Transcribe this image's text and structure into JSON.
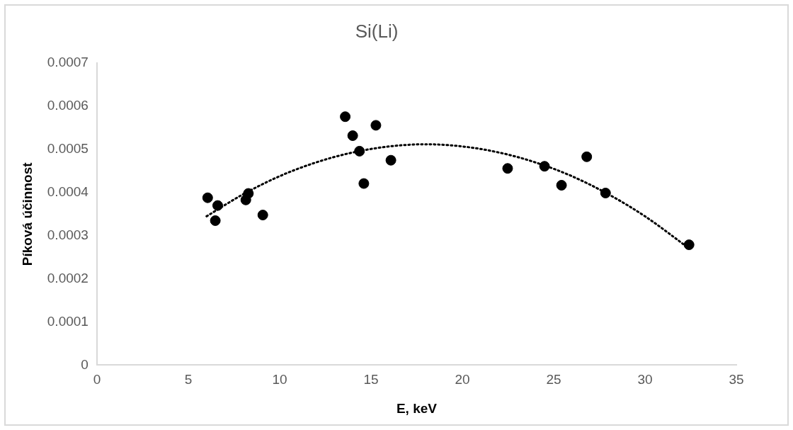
{
  "chart_data": {
    "type": "scatter",
    "title": "Si(Li)",
    "xlabel": "E, keV",
    "ylabel": "Píková účinnost",
    "xlim": [
      0,
      35
    ],
    "xticks": [
      0,
      5,
      10,
      15,
      20,
      25,
      30,
      35
    ],
    "ylim": [
      0,
      0.0007
    ],
    "yticks": [
      0,
      0.0001,
      0.0002,
      0.0003,
      0.0004,
      0.0005,
      0.0006,
      0.0007
    ],
    "grid": false,
    "legend": false,
    "marker": "circle",
    "series": [
      {
        "color": "#000000",
        "x": [
          6.06,
          6.61,
          6.48,
          8.29,
          8.15,
          9.08,
          13.59,
          14.0,
          14.37,
          15.27,
          16.09,
          14.61,
          22.48,
          24.5,
          25.43,
          26.81,
          27.84,
          32.41
        ],
        "values": [
          0.000388,
          0.00037,
          0.000335,
          0.000398,
          0.000383,
          0.000348,
          0.000576,
          0.000532,
          0.000496,
          0.000556,
          0.000475,
          0.000421,
          0.000456,
          0.000461,
          0.000417,
          0.000483,
          0.000399,
          0.000279
        ]
      },
      {
        "type": "line",
        "color": "#000000",
        "marker": "none",
        "line_style": "dotted",
        "x": [
          6,
          8,
          10,
          12,
          14,
          16,
          18,
          20,
          22,
          24,
          26,
          28,
          30,
          32.4
        ],
        "values": [
          0.000345,
          0.000396,
          0.000438,
          0.00047,
          0.000493,
          0.000507,
          0.000512,
          0.000507,
          0.000493,
          0.00047,
          0.000438,
          0.000396,
          0.000345,
          0.000271
        ]
      }
    ]
  }
}
